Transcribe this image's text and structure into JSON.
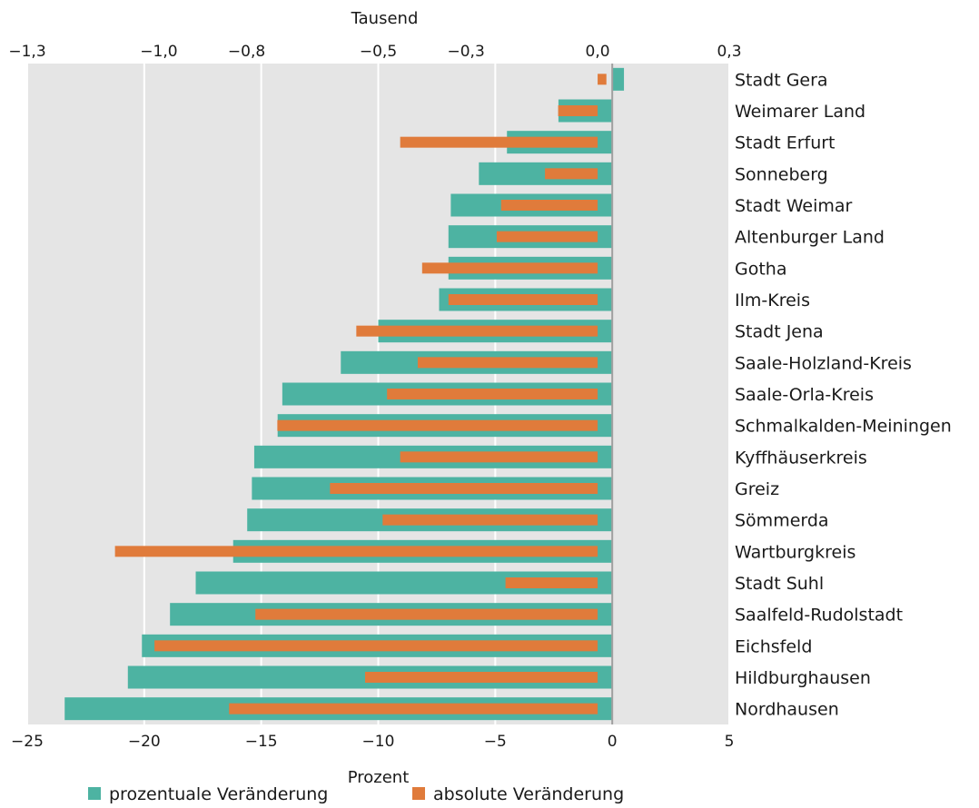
{
  "chart_data": {
    "type": "bar",
    "orientation": "horizontal",
    "categories": [
      "Stadt Gera",
      "Weimarer Land",
      "Stadt Erfurt",
      "Sonneberg",
      "Stadt Weimar",
      "Altenburger Land",
      "Gotha",
      "Ilm-Kreis",
      "Stadt Jena",
      "Saale-Holzland-Kreis",
      "Saale-Orla-Kreis",
      "Schmalkalden-Meiningen",
      "Kyffhäuserkreis",
      "Greiz",
      "Sömmerda",
      "Wartburgkreis",
      "Stadt Suhl",
      "Saalfeld-Rudolstadt",
      "Eichsfeld",
      "Hildburghausen",
      "Nordhausen"
    ],
    "series": [
      {
        "name": "prozentuale Veränderung",
        "axis": "bottom",
        "color": "#4db3a2",
        "values": [
          0.5,
          -2.3,
          -4.5,
          -5.7,
          -6.9,
          -7.0,
          -7.0,
          -7.4,
          -10.0,
          -11.6,
          -14.1,
          -14.3,
          -15.3,
          -15.4,
          -15.6,
          -16.2,
          -17.8,
          -18.9,
          -20.1,
          -20.7,
          -23.4
        ]
      },
      {
        "name": "absolute Veränderung",
        "axis": "top",
        "color": "#e07b3b",
        "values": [
          0.02,
          -0.09,
          -0.45,
          -0.12,
          -0.22,
          -0.23,
          -0.4,
          -0.34,
          -0.55,
          -0.41,
          -0.48,
          -0.73,
          -0.45,
          -0.61,
          -0.49,
          -1.1,
          -0.21,
          -0.78,
          -1.01,
          -0.53,
          -0.84
        ]
      }
    ],
    "x_bottom": {
      "label": "Prozent",
      "lim": [
        -25,
        5
      ],
      "ticks": [
        -25,
        -20,
        -15,
        -10,
        -5,
        0,
        5
      ],
      "tick_labels": [
        "−25",
        "−20",
        "−15",
        "−10",
        "−5",
        "0",
        "5"
      ]
    },
    "x_top": {
      "label": "Tausend",
      "lim": [
        -1.3,
        0.3
      ],
      "ticks": [
        -1.3,
        -1.0,
        -0.8,
        -0.5,
        -0.3,
        0.0,
        0.3
      ],
      "tick_labels": [
        "−1,3",
        "−1,0",
        "−0,8",
        "−0,5",
        "−0,3",
        "0,0",
        "0,3"
      ]
    },
    "grid": true,
    "legend_position": "bottom",
    "colors": {
      "plot_background": "#e5e5e5",
      "gridline": "#ffffff",
      "zero_line": "#a0a0a0"
    }
  }
}
